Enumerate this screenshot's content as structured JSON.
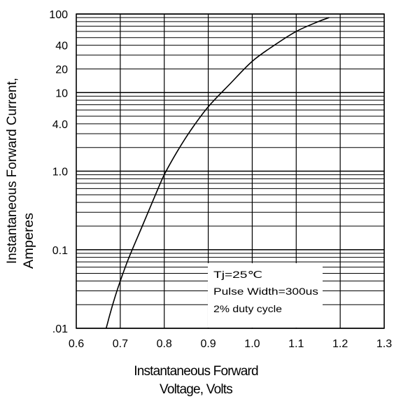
{
  "chart_data": {
    "type": "line",
    "title": "",
    "xlabel": [
      "Instantaneous Forward",
      "Voltage, Volts"
    ],
    "ylabel": [
      "Instantaneous Forward Current,",
      "Amperes"
    ],
    "x_scale": "linear",
    "y_scale": "log",
    "xlim": [
      0.6,
      1.3
    ],
    "ylim": [
      0.01,
      100
    ],
    "x_ticks": [
      0.6,
      0.7,
      0.8,
      0.9,
      1.0,
      1.1,
      1.2,
      1.3
    ],
    "x_tick_labels": [
      "0.6",
      "0.7",
      "0.8",
      "0.9",
      "1.0",
      "1.1",
      "1.2",
      "1.3"
    ],
    "y_ticks": [
      0.01,
      0.1,
      1.0,
      4.0,
      10,
      20,
      40,
      100
    ],
    "y_tick_labels": [
      ".01",
      "0.1",
      "1.0",
      "4.0",
      "10",
      "20",
      "40",
      "100"
    ],
    "grid": true,
    "series": [
      {
        "name": "",
        "x": [
          0.668,
          0.675,
          0.685,
          0.7,
          0.72,
          0.75,
          0.78,
          0.8,
          0.83,
          0.86,
          0.9,
          0.95,
          1.0,
          1.05,
          1.1,
          1.15,
          1.175
        ],
        "y": [
          0.01,
          0.014,
          0.022,
          0.04,
          0.08,
          0.2,
          0.5,
          0.9,
          1.8,
          3.3,
          6.6,
          13,
          25,
          40,
          60,
          80,
          90
        ]
      }
    ],
    "annotations": [
      "Tj=25℃",
      "Pulse Width=300us",
      "2% duty cycle"
    ]
  }
}
